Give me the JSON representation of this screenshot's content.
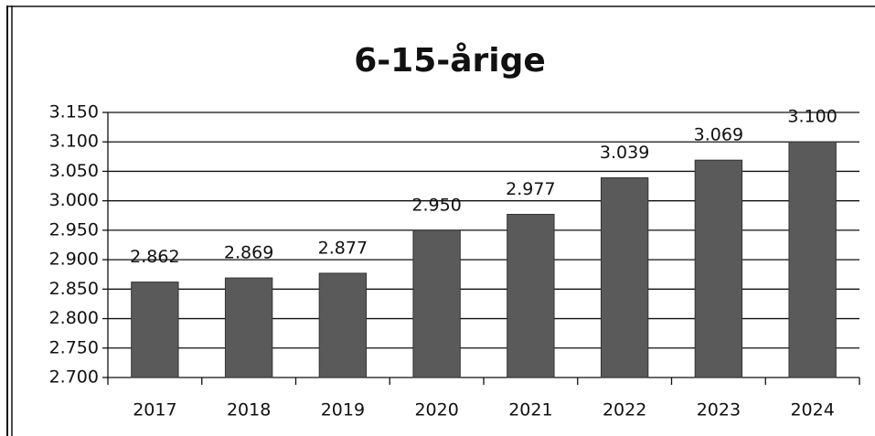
{
  "chart_data": {
    "type": "bar",
    "title": "6-15-årige",
    "categories": [
      "2017",
      "2018",
      "2019",
      "2020",
      "2021",
      "2022",
      "2023",
      "2024"
    ],
    "values": [
      2862,
      2869,
      2877,
      2950,
      2977,
      3039,
      3069,
      3100
    ],
    "value_labels": [
      "2.862",
      "2.869",
      "2.877",
      "2.950",
      "2.977",
      "3.039",
      "3.069",
      "3.100"
    ],
    "color": "#5a5a5a",
    "ylim": [
      2700,
      3150
    ],
    "yticks": [
      {
        "value": 2700,
        "label": "2.700"
      },
      {
        "value": 2750,
        "label": "2.750"
      },
      {
        "value": 2800,
        "label": "2.800"
      },
      {
        "value": 2850,
        "label": "2.850"
      },
      {
        "value": 2900,
        "label": "2.900"
      },
      {
        "value": 2950,
        "label": "2.950"
      },
      {
        "value": 3000,
        "label": "3.000"
      },
      {
        "value": 3050,
        "label": "3.050"
      },
      {
        "value": 3100,
        "label": "3.100"
      },
      {
        "value": 3150,
        "label": "3.150"
      }
    ],
    "grid": true
  }
}
